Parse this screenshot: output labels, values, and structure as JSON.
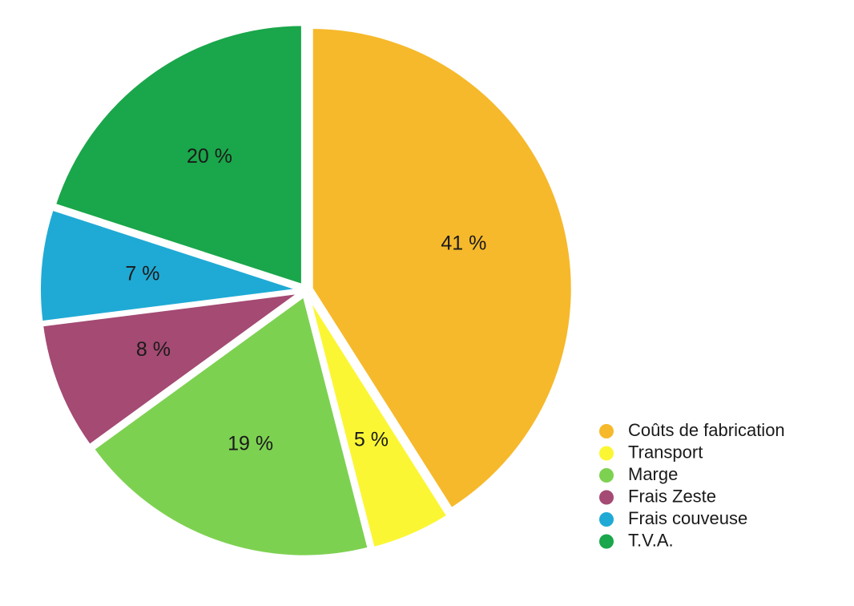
{
  "chart_data": {
    "type": "pie",
    "categories": [
      "Coûts de fabrication",
      "Transport",
      "Marge",
      "Frais Zeste",
      "Frais couveuse",
      "T.V.A."
    ],
    "values": [
      41,
      5,
      19,
      8,
      7,
      20
    ],
    "labels": [
      "41 %",
      "5 %",
      "19 %",
      "8 %",
      "7 %",
      "20 %"
    ],
    "colors": [
      "#f6b92b",
      "#fbf634",
      "#7dd151",
      "#a44a73",
      "#1faad5",
      "#1aa64a"
    ],
    "legend_position": "bottom-right"
  }
}
